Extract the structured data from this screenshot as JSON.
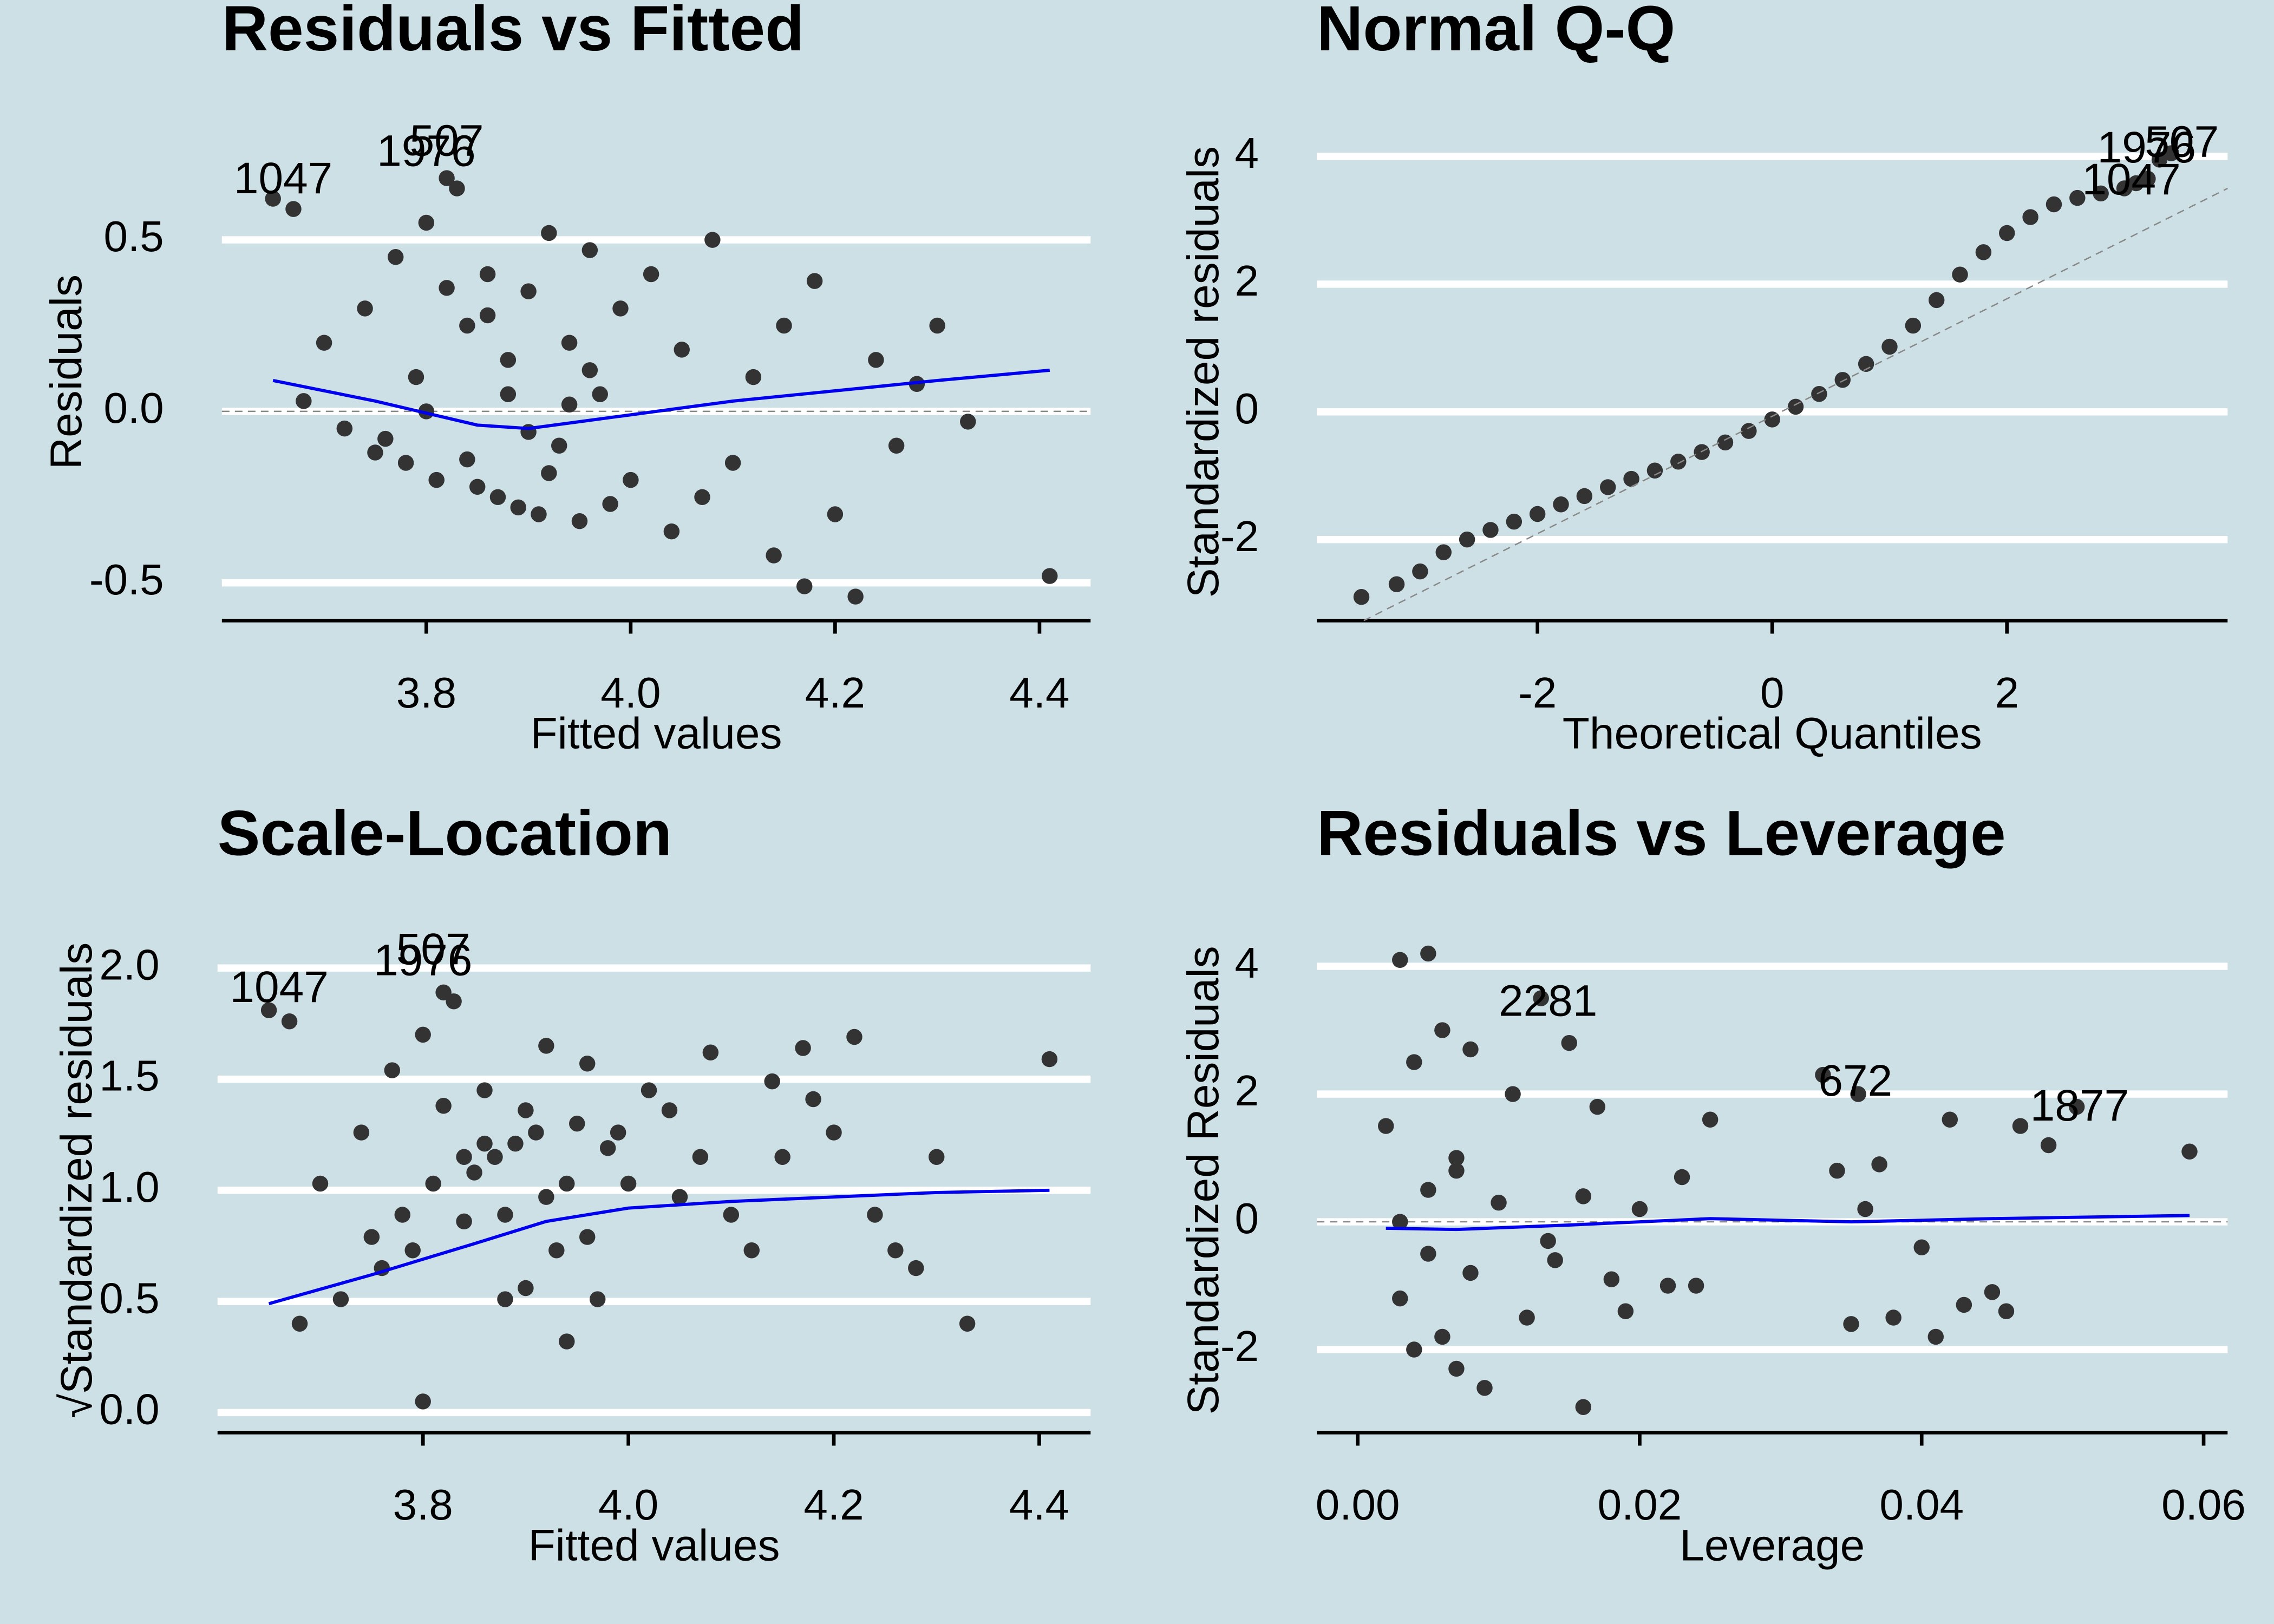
{
  "chart_data": [
    {
      "type": "scatter",
      "title": "Residuals vs Fitted",
      "xlabel": "Fitted values",
      "ylabel": "Residuals",
      "xlim": [
        3.6,
        4.45
      ],
      "ylim": [
        -0.61,
        0.84
      ],
      "xticks": [
        3.8,
        {
          "value": 4.0,
          "label": "4.0"
        },
        4.2,
        4.4
      ],
      "yticks": [
        -0.5,
        {
          "value": 0,
          "label": "0.0"
        },
        0.5
      ],
      "grid": true,
      "hline": 0,
      "series": [
        {
          "color": "#333333",
          "style": "points",
          "x": [
            3.65,
            3.67,
            3.68,
            3.7,
            3.72,
            3.74,
            3.75,
            3.77,
            3.78,
            3.79,
            3.8,
            3.81,
            3.82,
            3.83,
            3.84,
            3.85,
            3.86,
            3.87,
            3.88,
            3.89,
            3.9,
            3.91,
            3.92,
            3.93,
            3.94,
            3.95,
            3.96,
            3.97,
            3.98,
            3.99,
            4.0,
            4.02,
            4.04,
            4.05,
            4.07,
            4.08,
            4.1,
            4.12,
            4.14,
            4.15,
            4.17,
            4.18,
            4.2,
            4.22,
            4.24,
            4.26,
            4.28,
            4.3,
            4.33,
            4.41,
            3.76,
            3.8,
            3.84,
            3.88,
            3.92,
            3.96,
            3.86,
            3.9,
            3.94,
            3.82
          ],
          "values": [
            0.62,
            0.59,
            0.03,
            0.2,
            -0.05,
            0.3,
            -0.12,
            0.45,
            -0.15,
            0.1,
            0.55,
            -0.2,
            0.68,
            0.65,
            0.25,
            -0.22,
            0.4,
            -0.25,
            0.15,
            -0.28,
            0.35,
            -0.3,
            0.52,
            -0.1,
            0.2,
            -0.32,
            0.47,
            0.05,
            -0.27,
            0.3,
            -0.2,
            0.4,
            -0.35,
            0.18,
            -0.25,
            0.5,
            -0.15,
            0.1,
            -0.42,
            0.25,
            -0.51,
            0.38,
            -0.3,
            -0.54,
            0.15,
            -0.1,
            0.08,
            0.25,
            -0.03,
            -0.48,
            -0.08,
            0.0,
            -0.14,
            0.05,
            -0.18,
            0.12,
            0.28,
            -0.06,
            0.02,
            0.36
          ]
        },
        {
          "color": "#0000ee",
          "style": "line",
          "x": [
            3.65,
            3.75,
            3.85,
            3.9,
            3.95,
            4.0,
            4.1,
            4.2,
            4.3,
            4.41
          ],
          "values": [
            0.09,
            0.03,
            -0.04,
            -0.05,
            -0.03,
            -0.01,
            0.03,
            0.06,
            0.09,
            0.12
          ]
        }
      ],
      "annotations": [
        {
          "text": "1047",
          "x": 3.66,
          "y": 0.67
        },
        {
          "text": "1976",
          "x": 3.8,
          "y": 0.75
        },
        {
          "text": "507",
          "x": 3.82,
          "y": 0.78
        }
      ]
    },
    {
      "type": "scatter",
      "title": "Normal Q-Q",
      "xlabel": "Theoretical Quantiles",
      "ylabel": "Standardized residuals",
      "xlim": [
        -3.88,
        3.88
      ],
      "ylim": [
        -3.27,
        4.52
      ],
      "xticks": [
        -2,
        0,
        2
      ],
      "yticks": [
        -2,
        0,
        2,
        4
      ],
      "grid": true,
      "series": [
        {
          "color": "#333333",
          "style": "points",
          "x": [
            -3.5,
            -3.2,
            -3.0,
            -2.8,
            -2.6,
            -2.4,
            -2.2,
            -2.0,
            -1.8,
            -1.6,
            -1.4,
            -1.2,
            -1.0,
            -0.8,
            -0.6,
            -0.4,
            -0.2,
            0,
            0.2,
            0.4,
            0.6,
            0.8,
            1.0,
            1.2,
            1.4,
            1.6,
            1.8,
            2.0,
            2.2,
            2.4,
            2.6,
            2.8,
            3.0,
            3.1,
            3.2,
            3.3,
            3.4
          ],
          "values": [
            -2.9,
            -2.7,
            -2.5,
            -2.2,
            -2.0,
            -1.85,
            -1.72,
            -1.6,
            -1.45,
            -1.32,
            -1.18,
            -1.05,
            -0.92,
            -0.78,
            -0.63,
            -0.48,
            -0.3,
            -0.12,
            0.08,
            0.28,
            0.5,
            0.75,
            1.02,
            1.35,
            1.75,
            2.15,
            2.5,
            2.8,
            3.05,
            3.25,
            3.35,
            3.42,
            3.5,
            3.58,
            3.65,
            3.95,
            4.05
          ]
        },
        {
          "color": "#888888",
          "style": "dashed",
          "x": [
            -3.48,
            3.88
          ],
          "values": [
            -3.27,
            3.5
          ]
        }
      ],
      "annotations": [
        {
          "text": "1047",
          "x": 3.06,
          "y": 3.59
        },
        {
          "text": "1976",
          "x": 3.19,
          "y": 4.09
        },
        {
          "text": "507",
          "x": 3.49,
          "y": 4.18
        }
      ]
    },
    {
      "type": "scatter",
      "title": "Scale-Location",
      "xlabel": "Fitted values",
      "ylabel": "√Standardized residuals",
      "xlim": [
        3.6,
        4.45
      ],
      "ylim": [
        -0.09,
        2.18
      ],
      "xticks": [
        3.8,
        {
          "value": 4.0,
          "label": "4.0"
        },
        4.2,
        4.4
      ],
      "yticks": [
        {
          "value": 0,
          "label": "0.0"
        },
        0.5,
        {
          "value": 1,
          "label": "1.0"
        },
        1.5,
        {
          "value": 2,
          "label": "2.0"
        }
      ],
      "grid": true,
      "series": [
        {
          "color": "#333333",
          "style": "points",
          "x": [
            3.65,
            3.67,
            3.68,
            3.7,
            3.72,
            3.74,
            3.75,
            3.77,
            3.78,
            3.79,
            3.8,
            3.81,
            3.82,
            3.83,
            3.84,
            3.85,
            3.86,
            3.87,
            3.88,
            3.89,
            3.9,
            3.91,
            3.92,
            3.93,
            3.94,
            3.95,
            3.96,
            3.97,
            3.98,
            3.99,
            4.0,
            4.02,
            4.04,
            4.05,
            4.07,
            4.08,
            4.1,
            4.12,
            4.14,
            4.15,
            4.17,
            4.18,
            4.2,
            4.22,
            4.24,
            4.26,
            4.28,
            4.3,
            4.33,
            4.41,
            3.76,
            3.8,
            3.84,
            3.88,
            3.92,
            3.96,
            3.86,
            3.9,
            3.94,
            3.82
          ],
          "values": [
            1.81,
            1.76,
            0.4,
            1.03,
            0.51,
            1.26,
            0.79,
            1.54,
            0.89,
            0.73,
            1.7,
            1.03,
            1.89,
            1.85,
            1.15,
            1.08,
            1.45,
            1.15,
            0.89,
            1.21,
            1.36,
            1.26,
            1.65,
            0.73,
            1.03,
            1.3,
            1.57,
            0.51,
            1.19,
            1.26,
            1.03,
            1.45,
            1.36,
            0.97,
            1.15,
            1.62,
            0.89,
            0.73,
            1.49,
            1.15,
            1.64,
            1.41,
            1.26,
            1.69,
            0.89,
            0.73,
            0.65,
            1.15,
            0.4,
            1.59,
            0.65,
            0.05,
            0.86,
            0.51,
            0.97,
            0.79,
            1.21,
            0.56,
            0.32,
            1.38
          ]
        },
        {
          "color": "#0000ee",
          "style": "line",
          "x": [
            3.65,
            3.75,
            3.85,
            3.92,
            4.0,
            4.1,
            4.2,
            4.3,
            4.41
          ],
          "values": [
            0.49,
            0.62,
            0.76,
            0.86,
            0.92,
            0.95,
            0.97,
            0.99,
            1.0
          ]
        }
      ],
      "annotations": [
        {
          "text": "1047",
          "x": 3.66,
          "y": 1.9
        },
        {
          "text": "1976",
          "x": 3.8,
          "y": 2.02
        },
        {
          "text": "507",
          "x": 3.81,
          "y": 2.07
        }
      ]
    },
    {
      "type": "scatter",
      "title": "Residuals vs Leverage",
      "xlabel": "Leverage",
      "ylabel": "Standardized Residuals",
      "xlim": [
        -0.0029,
        0.0617
      ],
      "ylim": [
        -3.3,
        4.6
      ],
      "xticks": [
        {
          "value": 0,
          "label": "0.00"
        },
        0.02,
        0.04,
        0.06
      ],
      "yticks": [
        -2,
        0,
        2,
        4
      ],
      "grid": true,
      "hline": 0,
      "series": [
        {
          "color": "#333333",
          "style": "points",
          "x": [
            0.002,
            0.003,
            0.003,
            0.004,
            0.004,
            0.005,
            0.005,
            0.006,
            0.006,
            0.007,
            0.007,
            0.008,
            0.008,
            0.009,
            0.01,
            0.011,
            0.012,
            0.013,
            0.014,
            0.015,
            0.016,
            0.017,
            0.018,
            0.019,
            0.02,
            0.022,
            0.023,
            0.024,
            0.025,
            0.033,
            0.034,
            0.035,
            0.036,
            0.037,
            0.038,
            0.04,
            0.041,
            0.042,
            0.043,
            0.045,
            0.046,
            0.047,
            0.049,
            0.051,
            0.059,
            0.003,
            0.005,
            0.007,
            0.0135,
            0.016,
            0.0355
          ],
          "values": [
            1.5,
            -1.2,
            4.1,
            2.5,
            -2.0,
            4.2,
            0.5,
            -1.8,
            3.0,
            1.0,
            -2.3,
            2.7,
            -0.8,
            -2.6,
            0.3,
            2.0,
            -1.5,
            3.5,
            -0.6,
            2.8,
            -2.9,
            1.8,
            -0.9,
            -1.4,
            0.2,
            -1.0,
            0.7,
            -1.0,
            1.6,
            2.3,
            0.8,
            -1.6,
            0.2,
            0.9,
            -1.5,
            -0.4,
            -1.8,
            1.6,
            -1.3,
            -1.1,
            -1.4,
            1.5,
            1.2,
            1.8,
            1.1,
            0.0,
            -0.5,
            0.8,
            -0.3,
            0.4,
            2.0
          ]
        },
        {
          "color": "#0000ee",
          "style": "line",
          "x": [
            0.002,
            0.007,
            0.015,
            0.025,
            0.035,
            0.045,
            0.059
          ],
          "values": [
            -0.1,
            -0.12,
            -0.05,
            0.05,
            0.0,
            0.05,
            0.1
          ]
        }
      ],
      "annotations": [
        {
          "text": "2281",
          "x": 0.0135,
          "y": 3.41
        },
        {
          "text": "672",
          "x": 0.0353,
          "y": 2.16
        },
        {
          "text": "1877",
          "x": 0.0512,
          "y": 1.77
        }
      ]
    }
  ]
}
